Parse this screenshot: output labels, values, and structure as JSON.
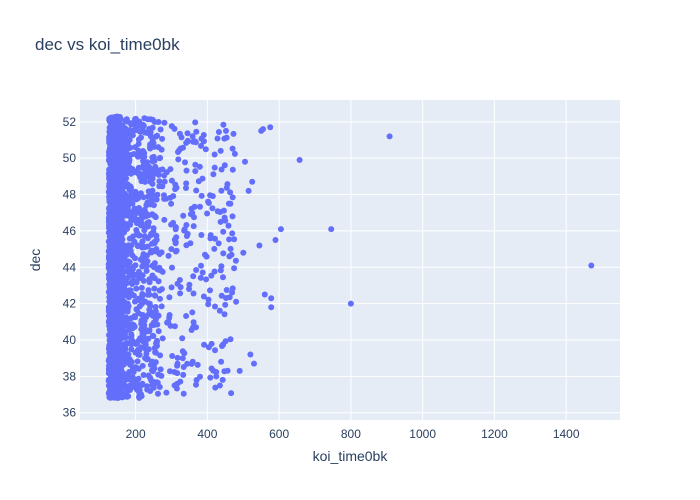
{
  "chart_data": {
    "type": "scatter",
    "title": "dec vs koi_time0bk",
    "xlabel": "koi_time0bk",
    "ylabel": "dec",
    "xlim": [
      45,
      1550
    ],
    "ylim": [
      35.6,
      53.2
    ],
    "x_ticks": [
      200,
      400,
      600,
      800,
      1000,
      1200,
      1400
    ],
    "y_ticks": [
      36,
      38,
      40,
      42,
      44,
      46,
      48,
      50,
      52
    ],
    "grid": true,
    "colors": {
      "plot_background": "#e5ecf6",
      "grid": "#ffffff",
      "marker": "#636efa",
      "text": "#2a3f5f"
    },
    "notable_points": [
      {
        "x": 1470,
        "y": 44.1
      },
      {
        "x": 908,
        "y": 51.2
      },
      {
        "x": 800,
        "y": 42.0
      },
      {
        "x": 745,
        "y": 46.1
      },
      {
        "x": 657,
        "y": 49.9
      },
      {
        "x": 605,
        "y": 46.1
      },
      {
        "x": 575,
        "y": 51.7
      },
      {
        "x": 555,
        "y": 51.6
      },
      {
        "x": 550,
        "y": 51.5
      },
      {
        "x": 578,
        "y": 42.3
      },
      {
        "x": 560,
        "y": 42.5
      },
      {
        "x": 578,
        "y": 41.8
      },
      {
        "x": 590,
        "y": 45.5
      },
      {
        "x": 545,
        "y": 45.2
      },
      {
        "x": 530,
        "y": 38.7
      },
      {
        "x": 520,
        "y": 39.2
      },
      {
        "x": 505,
        "y": 49.8
      },
      {
        "x": 525,
        "y": 48.7
      },
      {
        "x": 515,
        "y": 48.2
      },
      {
        "x": 500,
        "y": 44.8
      },
      {
        "x": 452,
        "y": 51.5
      },
      {
        "x": 437,
        "y": 50.4
      },
      {
        "x": 420,
        "y": 50.2
      },
      {
        "x": 490,
        "y": 38.3
      },
      {
        "x": 435,
        "y": 37.5
      },
      {
        "x": 480,
        "y": 42.1
      },
      {
        "x": 470,
        "y": 46.8
      },
      {
        "x": 460,
        "y": 47.5
      }
    ],
    "dense_cluster": {
      "core": {
        "x_range": [
          125,
          160
        ],
        "y_range": [
          36.8,
          52.3
        ]
      },
      "mid": {
        "x_range": [
          160,
          260
        ],
        "y_range": [
          36.8,
          52.2
        ]
      },
      "tail": {
        "x_range": [
          260,
          480
        ],
        "y_range": [
          37.0,
          52.0
        ]
      }
    }
  }
}
